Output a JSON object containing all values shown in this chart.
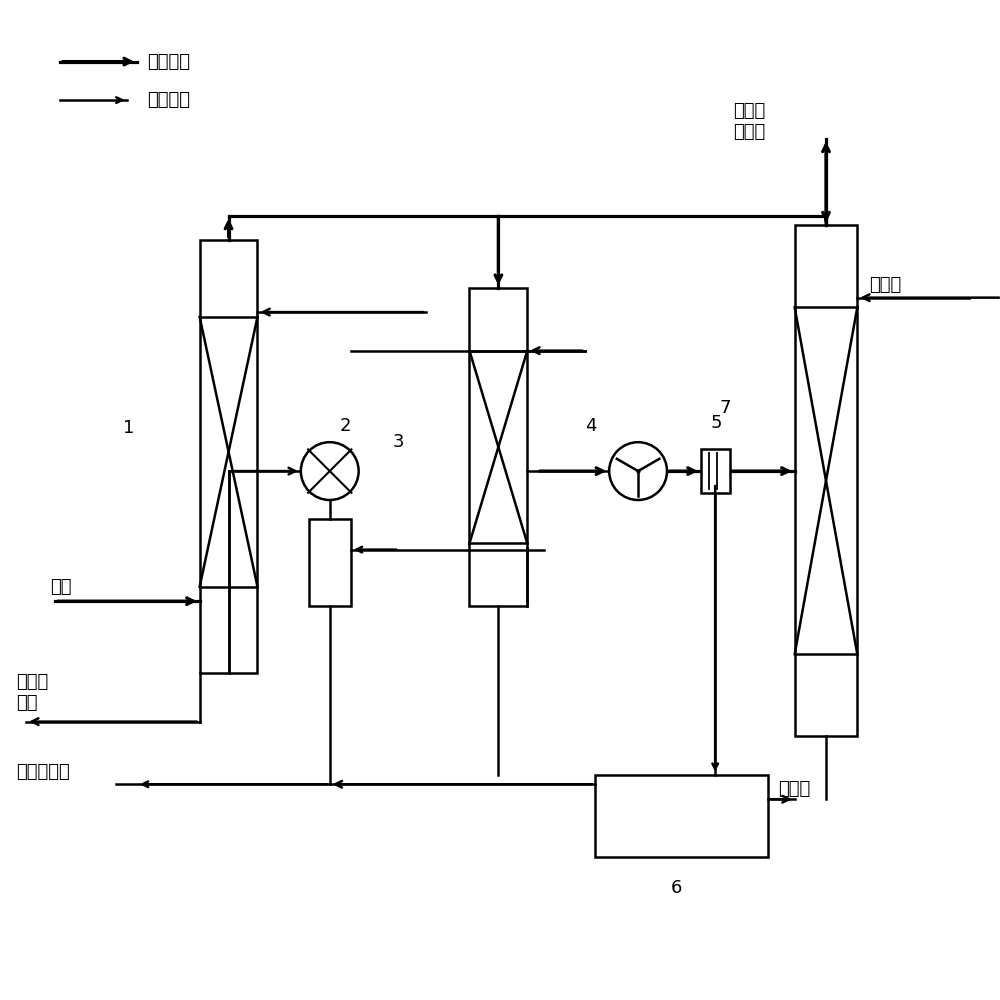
{
  "bg_color": "#ffffff",
  "line_color": "#000000",
  "legend_gas_label": "气流通路",
  "legend_liquid_label": "液流通路",
  "label_1": "1",
  "label_2": "2",
  "label_3": "3",
  "label_4": "4",
  "label_5": "5",
  "label_6": "6",
  "label_7": "7",
  "text_waste_gas": "废气",
  "text_acid": "再生酸\n酸液",
  "text_cooling": "冷却循环水",
  "text_exhaust": "净化废\n气排空",
  "text_desalt": "脱盐水",
  "text_abswater": "吸收水",
  "font_size": 13
}
